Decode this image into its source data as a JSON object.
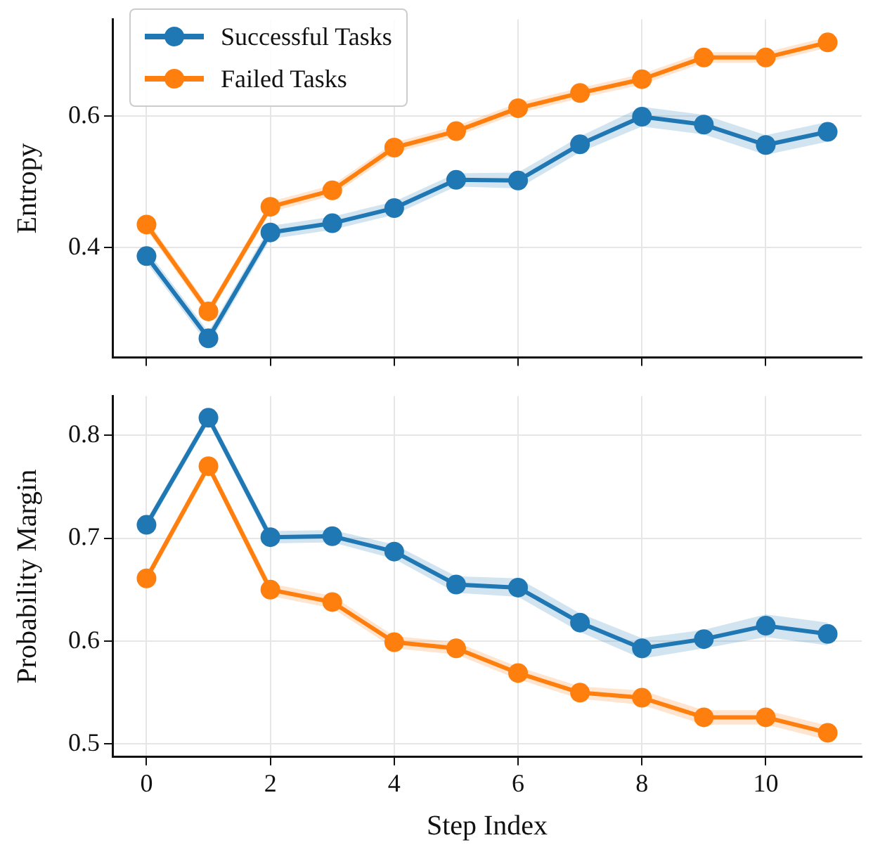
{
  "chart_data": [
    {
      "type": "line",
      "ylabel": "Entropy",
      "x": [
        0,
        1,
        2,
        3,
        4,
        5,
        6,
        7,
        8,
        9,
        10,
        11
      ],
      "xlim": [
        -0.55,
        11.55
      ],
      "xticks": [
        0,
        2,
        4,
        6,
        8,
        10
      ],
      "ylim": [
        0.233,
        0.747
      ],
      "yticks": [
        0.4,
        0.6
      ],
      "grid": true,
      "legend": "top left",
      "marker": "circle",
      "line_style": "solid",
      "tick_labels": "y",
      "series": [
        {
          "name": "Successful Tasks",
          "color": "#1f77b4",
          "values": [
            0.387,
            0.262,
            0.423,
            0.437,
            0.46,
            0.503,
            0.502,
            0.557,
            0.599,
            0.587,
            0.556,
            0.576
          ],
          "lower": [
            0.377,
            0.252,
            0.413,
            0.427,
            0.45,
            0.493,
            0.49,
            0.545,
            0.584,
            0.572,
            0.541,
            0.561
          ],
          "upper": [
            0.397,
            0.272,
            0.433,
            0.447,
            0.47,
            0.513,
            0.514,
            0.569,
            0.614,
            0.602,
            0.571,
            0.591
          ]
        },
        {
          "name": "Failed Tasks",
          "color": "#ff7f0e",
          "values": [
            0.435,
            0.303,
            0.462,
            0.487,
            0.552,
            0.577,
            0.612,
            0.635,
            0.656,
            0.689,
            0.689,
            0.712
          ],
          "lower": [
            0.427,
            0.295,
            0.454,
            0.479,
            0.544,
            0.569,
            0.604,
            0.627,
            0.648,
            0.681,
            0.681,
            0.704
          ],
          "upper": [
            0.443,
            0.311,
            0.47,
            0.495,
            0.56,
            0.585,
            0.62,
            0.643,
            0.664,
            0.697,
            0.697,
            0.72
          ]
        }
      ]
    },
    {
      "type": "line",
      "xlabel": "Step Index",
      "ylabel": "Probability Margin",
      "x": [
        0,
        1,
        2,
        3,
        4,
        5,
        6,
        7,
        8,
        9,
        10,
        11
      ],
      "xlim": [
        -0.55,
        11.55
      ],
      "xticks": [
        0,
        2,
        4,
        6,
        8,
        10
      ],
      "ylim": [
        0.4875,
        0.838
      ],
      "yticks": [
        0.5,
        0.6,
        0.7,
        0.8
      ],
      "grid": true,
      "marker": "circle",
      "line_style": "solid",
      "series": [
        {
          "color": "#1f77b4",
          "values": [
            0.713,
            0.817,
            0.701,
            0.702,
            0.687,
            0.655,
            0.652,
            0.618,
            0.593,
            0.602,
            0.615,
            0.607
          ],
          "lower": [
            0.708,
            0.812,
            0.695,
            0.696,
            0.68,
            0.647,
            0.643,
            0.609,
            0.583,
            0.593,
            0.604,
            0.596
          ],
          "upper": [
            0.718,
            0.822,
            0.707,
            0.708,
            0.694,
            0.663,
            0.661,
            0.627,
            0.603,
            0.611,
            0.626,
            0.618
          ]
        },
        {
          "color": "#ff7f0e",
          "values": [
            0.661,
            0.77,
            0.65,
            0.638,
            0.599,
            0.593,
            0.569,
            0.55,
            0.545,
            0.526,
            0.526,
            0.511
          ],
          "lower": [
            0.656,
            0.765,
            0.644,
            0.632,
            0.593,
            0.587,
            0.563,
            0.544,
            0.538,
            0.519,
            0.519,
            0.504
          ],
          "upper": [
            0.666,
            0.775,
            0.656,
            0.644,
            0.605,
            0.599,
            0.575,
            0.556,
            0.552,
            0.533,
            0.533,
            0.518
          ]
        }
      ]
    }
  ]
}
